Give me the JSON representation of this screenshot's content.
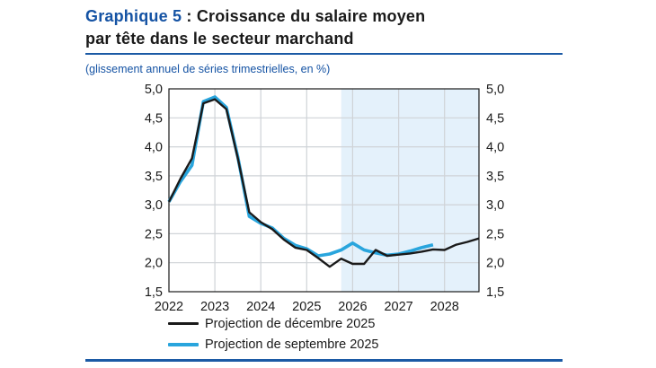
{
  "header": {
    "title_prefix": "Graphique 5",
    "title_rest": " : Croissance du salaire moyen",
    "title_line2": "par tête dans le secteur marchand",
    "subtitle": "(glissement annuel de séries trimestrielles, en %)"
  },
  "colors": {
    "title_blue": "#1553a4",
    "rule_blue": "#1b5aa5",
    "black_line": "#1a1a1a",
    "blue_line": "#29a5dd",
    "shade": "#e4f1fb",
    "grid": "#cfd3d7"
  },
  "chart_data": {
    "type": "line",
    "x_unit": "quarterly",
    "x_range": [
      2022,
      2028.75
    ],
    "x_step": 0.25,
    "ylim": [
      1.5,
      5.0
    ],
    "y_tick_step": 0.5,
    "y_tick_labels": [
      "5,0",
      "4,5",
      "4,0",
      "3,5",
      "3,0",
      "2,5",
      "2,0",
      "1,5"
    ],
    "x_tick_labels": [
      "2022",
      "2023",
      "2024",
      "2025",
      "2026",
      "2027",
      "2028"
    ],
    "grid": true,
    "dual_y_axis": true,
    "projection_shade_start": 2025.75,
    "legend_position": "bottom-left",
    "series": [
      {
        "name": "Projection de décembre 2025",
        "slug": "projection-decembre-2025-line",
        "color": "#1a1a1a",
        "width": 2.4,
        "start": 2022.0,
        "values": [
          3.05,
          3.45,
          3.8,
          4.75,
          4.82,
          4.65,
          3.8,
          2.87,
          2.7,
          2.58,
          2.4,
          2.26,
          2.22,
          2.08,
          1.93,
          2.07,
          1.98,
          1.98,
          2.22,
          2.12,
          2.14,
          2.16,
          2.19,
          2.23,
          2.22,
          2.31,
          2.36,
          2.42
        ]
      },
      {
        "name": "Projection de septembre 2025",
        "slug": "projection-septembre-2025-line",
        "color": "#29a5dd",
        "width": 3.6,
        "start": 2022.0,
        "values": [
          3.05,
          3.4,
          3.68,
          4.78,
          4.86,
          4.68,
          3.82,
          2.8,
          2.68,
          2.6,
          2.42,
          2.3,
          2.24,
          2.12,
          2.15,
          2.22,
          2.34,
          2.22,
          2.17,
          2.13,
          2.15,
          2.2,
          2.26,
          2.31
        ]
      }
    ]
  },
  "legend": {
    "items": [
      {
        "label": "Projection de décembre 2025",
        "color": "#1a1a1a",
        "thickness": 3
      },
      {
        "label": "Projection de septembre 2025",
        "color": "#29a5dd",
        "thickness": 4
      }
    ]
  }
}
